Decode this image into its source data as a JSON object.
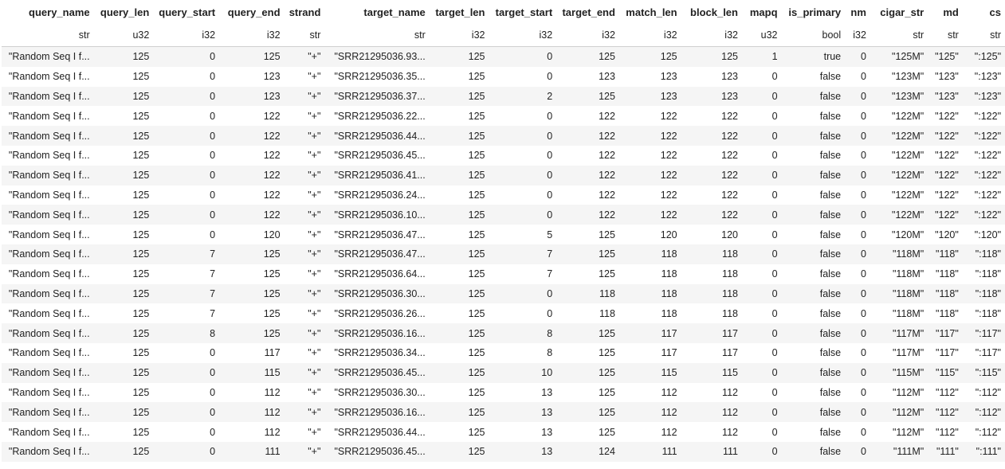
{
  "columns": [
    {
      "name": "query_name",
      "dtype": "str"
    },
    {
      "name": "query_len",
      "dtype": "u32"
    },
    {
      "name": "query_start",
      "dtype": "i32"
    },
    {
      "name": "query_end",
      "dtype": "i32"
    },
    {
      "name": "strand",
      "dtype": "str"
    },
    {
      "name": "target_name",
      "dtype": "str"
    },
    {
      "name": "target_len",
      "dtype": "i32"
    },
    {
      "name": "target_start",
      "dtype": "i32"
    },
    {
      "name": "target_end",
      "dtype": "i32"
    },
    {
      "name": "match_len",
      "dtype": "i32"
    },
    {
      "name": "block_len",
      "dtype": "i32"
    },
    {
      "name": "mapq",
      "dtype": "u32"
    },
    {
      "name": "is_primary",
      "dtype": "bool"
    },
    {
      "name": "nm",
      "dtype": "i32"
    },
    {
      "name": "cigar_str",
      "dtype": "str"
    },
    {
      "name": "md",
      "dtype": "str"
    },
    {
      "name": "cs",
      "dtype": "str"
    }
  ],
  "rows": [
    [
      "\"Random Seq I f...",
      "125",
      "0",
      "125",
      "\"+\"",
      "\"SRR21295036.93...",
      "125",
      "0",
      "125",
      "125",
      "125",
      "1",
      "true",
      "0",
      "\"125M\"",
      "\"125\"",
      "\":125\""
    ],
    [
      "\"Random Seq I f...",
      "125",
      "0",
      "123",
      "\"+\"",
      "\"SRR21295036.35...",
      "125",
      "0",
      "123",
      "123",
      "123",
      "0",
      "false",
      "0",
      "\"123M\"",
      "\"123\"",
      "\":123\""
    ],
    [
      "\"Random Seq I f...",
      "125",
      "0",
      "123",
      "\"+\"",
      "\"SRR21295036.37...",
      "125",
      "2",
      "125",
      "123",
      "123",
      "0",
      "false",
      "0",
      "\"123M\"",
      "\"123\"",
      "\":123\""
    ],
    [
      "\"Random Seq I f...",
      "125",
      "0",
      "122",
      "\"+\"",
      "\"SRR21295036.22...",
      "125",
      "0",
      "122",
      "122",
      "122",
      "0",
      "false",
      "0",
      "\"122M\"",
      "\"122\"",
      "\":122\""
    ],
    [
      "\"Random Seq I f...",
      "125",
      "0",
      "122",
      "\"+\"",
      "\"SRR21295036.44...",
      "125",
      "0",
      "122",
      "122",
      "122",
      "0",
      "false",
      "0",
      "\"122M\"",
      "\"122\"",
      "\":122\""
    ],
    [
      "\"Random Seq I f...",
      "125",
      "0",
      "122",
      "\"+\"",
      "\"SRR21295036.45...",
      "125",
      "0",
      "122",
      "122",
      "122",
      "0",
      "false",
      "0",
      "\"122M\"",
      "\"122\"",
      "\":122\""
    ],
    [
      "\"Random Seq I f...",
      "125",
      "0",
      "122",
      "\"+\"",
      "\"SRR21295036.41...",
      "125",
      "0",
      "122",
      "122",
      "122",
      "0",
      "false",
      "0",
      "\"122M\"",
      "\"122\"",
      "\":122\""
    ],
    [
      "\"Random Seq I f...",
      "125",
      "0",
      "122",
      "\"+\"",
      "\"SRR21295036.24...",
      "125",
      "0",
      "122",
      "122",
      "122",
      "0",
      "false",
      "0",
      "\"122M\"",
      "\"122\"",
      "\":122\""
    ],
    [
      "\"Random Seq I f...",
      "125",
      "0",
      "122",
      "\"+\"",
      "\"SRR21295036.10...",
      "125",
      "0",
      "122",
      "122",
      "122",
      "0",
      "false",
      "0",
      "\"122M\"",
      "\"122\"",
      "\":122\""
    ],
    [
      "\"Random Seq I f...",
      "125",
      "0",
      "120",
      "\"+\"",
      "\"SRR21295036.47...",
      "125",
      "5",
      "125",
      "120",
      "120",
      "0",
      "false",
      "0",
      "\"120M\"",
      "\"120\"",
      "\":120\""
    ],
    [
      "\"Random Seq I f...",
      "125",
      "7",
      "125",
      "\"+\"",
      "\"SRR21295036.47...",
      "125",
      "7",
      "125",
      "118",
      "118",
      "0",
      "false",
      "0",
      "\"118M\"",
      "\"118\"",
      "\":118\""
    ],
    [
      "\"Random Seq I f...",
      "125",
      "7",
      "125",
      "\"+\"",
      "\"SRR21295036.64...",
      "125",
      "7",
      "125",
      "118",
      "118",
      "0",
      "false",
      "0",
      "\"118M\"",
      "\"118\"",
      "\":118\""
    ],
    [
      "\"Random Seq I f...",
      "125",
      "7",
      "125",
      "\"+\"",
      "\"SRR21295036.30...",
      "125",
      "0",
      "118",
      "118",
      "118",
      "0",
      "false",
      "0",
      "\"118M\"",
      "\"118\"",
      "\":118\""
    ],
    [
      "\"Random Seq I f...",
      "125",
      "7",
      "125",
      "\"+\"",
      "\"SRR21295036.26...",
      "125",
      "0",
      "118",
      "118",
      "118",
      "0",
      "false",
      "0",
      "\"118M\"",
      "\"118\"",
      "\":118\""
    ],
    [
      "\"Random Seq I f...",
      "125",
      "8",
      "125",
      "\"+\"",
      "\"SRR21295036.16...",
      "125",
      "8",
      "125",
      "117",
      "117",
      "0",
      "false",
      "0",
      "\"117M\"",
      "\"117\"",
      "\":117\""
    ],
    [
      "\"Random Seq I f...",
      "125",
      "0",
      "117",
      "\"+\"",
      "\"SRR21295036.34...",
      "125",
      "8",
      "125",
      "117",
      "117",
      "0",
      "false",
      "0",
      "\"117M\"",
      "\"117\"",
      "\":117\""
    ],
    [
      "\"Random Seq I f...",
      "125",
      "0",
      "115",
      "\"+\"",
      "\"SRR21295036.45...",
      "125",
      "10",
      "125",
      "115",
      "115",
      "0",
      "false",
      "0",
      "\"115M\"",
      "\"115\"",
      "\":115\""
    ],
    [
      "\"Random Seq I f...",
      "125",
      "0",
      "112",
      "\"+\"",
      "\"SRR21295036.30...",
      "125",
      "13",
      "125",
      "112",
      "112",
      "0",
      "false",
      "0",
      "\"112M\"",
      "\"112\"",
      "\":112\""
    ],
    [
      "\"Random Seq I f...",
      "125",
      "0",
      "112",
      "\"+\"",
      "\"SRR21295036.16...",
      "125",
      "13",
      "125",
      "112",
      "112",
      "0",
      "false",
      "0",
      "\"112M\"",
      "\"112\"",
      "\":112\""
    ],
    [
      "\"Random Seq I f...",
      "125",
      "0",
      "112",
      "\"+\"",
      "\"SRR21295036.44...",
      "125",
      "13",
      "125",
      "112",
      "112",
      "0",
      "false",
      "0",
      "\"112M\"",
      "\"112\"",
      "\":112\""
    ],
    [
      "\"Random Seq I f...",
      "125",
      "0",
      "111",
      "\"+\"",
      "\"SRR21295036.45...",
      "125",
      "13",
      "124",
      "111",
      "111",
      "0",
      "false",
      "0",
      "\"111M\"",
      "\"111\"",
      "\":111\""
    ]
  ]
}
